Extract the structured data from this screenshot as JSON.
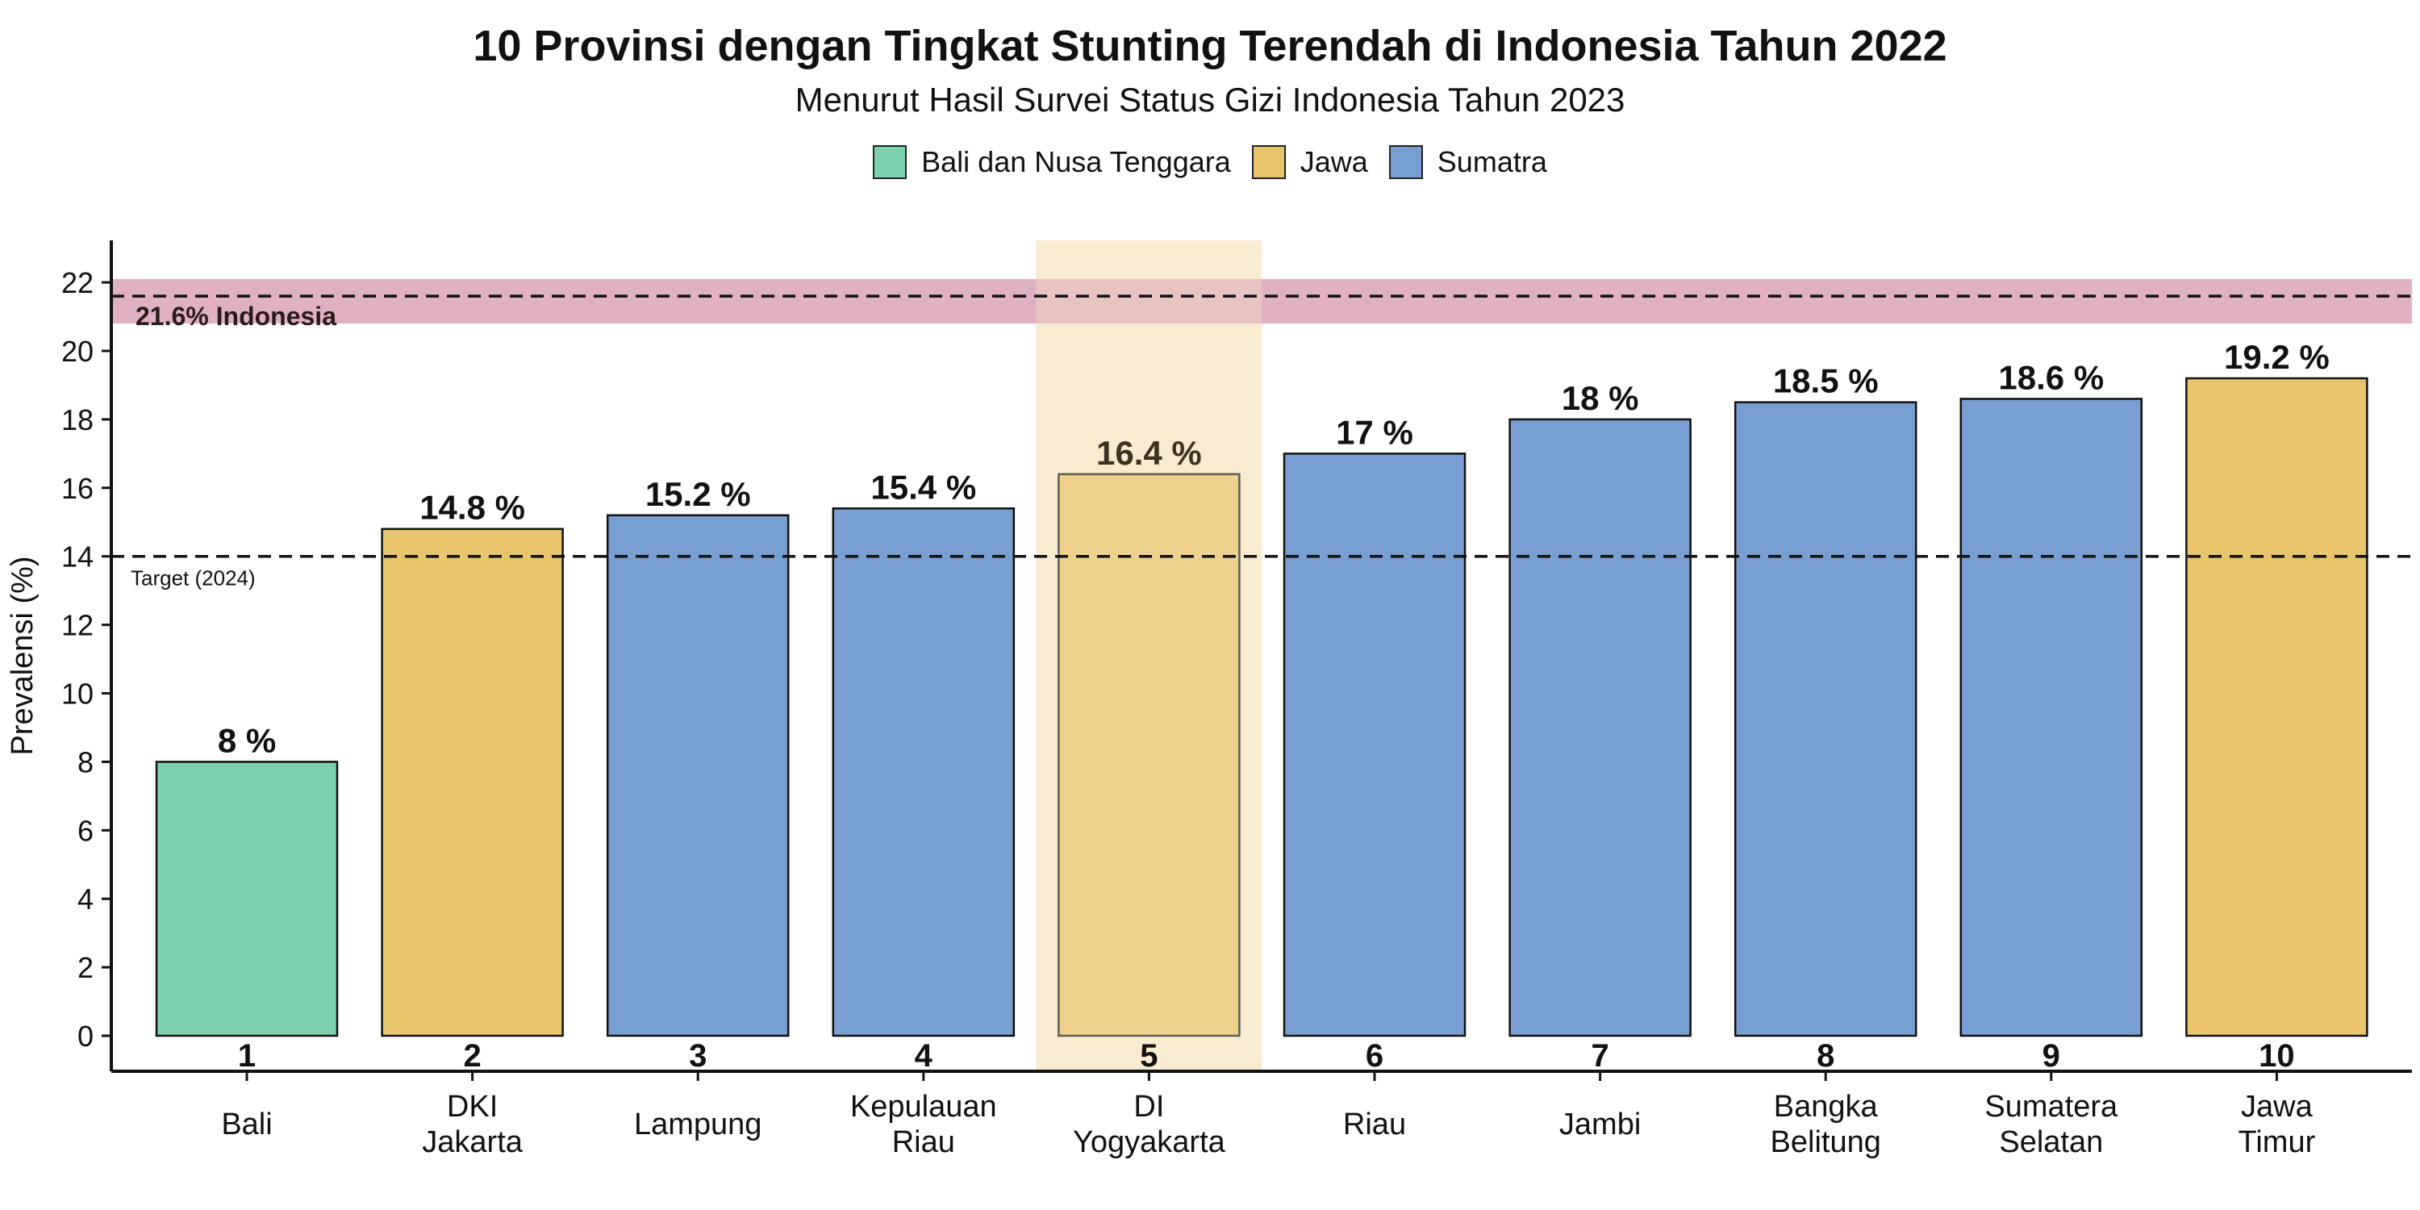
{
  "title": "10 Provinsi dengan Tingkat Stunting Terendah di Indonesia Tahun 2022",
  "subtitle": "Menurut Hasil Survei Status Gizi Indonesia Tahun 2023",
  "legend": [
    {
      "name": "Bali dan Nusa Tenggara",
      "color": "#79d2ad"
    },
    {
      "name": "Jawa",
      "color": "#e8c46b"
    },
    {
      "name": "Sumatra",
      "color": "#789fd2"
    }
  ],
  "colors": {
    "highlight_band": "#f8ebcf",
    "national_band": "#dca3b9",
    "axis": "#111111"
  },
  "chart_data": {
    "type": "bar",
    "title": "10 Provinsi dengan Tingkat Stunting Terendah di Indonesia Tahun 2022",
    "subtitle": "Menurut Hasil Survei Status Gizi Indonesia Tahun 2023",
    "ylabel": "Prevalensi (%)",
    "xlabel": "",
    "ylim": [
      0,
      23
    ],
    "yticks": [
      0,
      2,
      4,
      6,
      8,
      10,
      12,
      14,
      16,
      18,
      20,
      22
    ],
    "grid": false,
    "legend_position": "top",
    "categories": [
      "Bali",
      "DKI\nJakarta",
      "Lampung",
      "Kepulauan\nRiau",
      "DI\nYogyakarta",
      "Riau",
      "Jambi",
      "Bangka\nBelitung",
      "Sumatera\nSelatan",
      "Jawa\nTimur"
    ],
    "ranks": [
      "1",
      "2",
      "3",
      "4",
      "5",
      "6",
      "7",
      "8",
      "9",
      "10"
    ],
    "values": [
      8,
      14.8,
      15.2,
      15.4,
      16.4,
      17,
      18,
      18.5,
      18.6,
      19.2
    ],
    "value_labels": [
      "8 %",
      "14.8 %",
      "15.2 %",
      "15.4 %",
      "16.4 %",
      "17 %",
      "18 %",
      "18.5 %",
      "18.6 %",
      "19.2 %"
    ],
    "groups": [
      "Bali dan Nusa Tenggara",
      "Jawa",
      "Sumatra",
      "Sumatra",
      "Jawa",
      "Sumatra",
      "Sumatra",
      "Sumatra",
      "Sumatra",
      "Jawa"
    ],
    "highlighted_index": 4,
    "reference_lines": [
      {
        "value": 21.6,
        "label": "21.6% Indonesia",
        "band": [
          20.8,
          22.1
        ]
      },
      {
        "value": 14,
        "label": "Target (2024)"
      }
    ]
  }
}
